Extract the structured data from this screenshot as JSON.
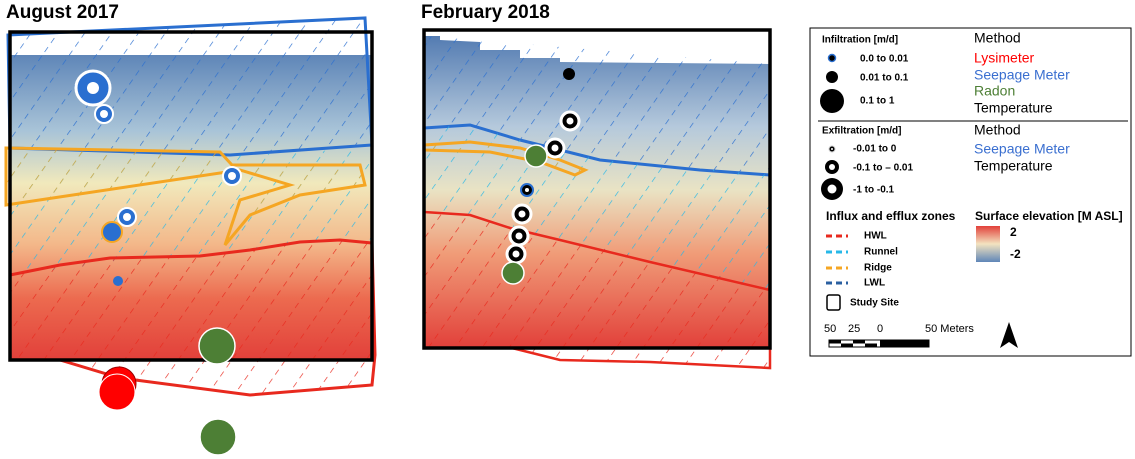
{
  "panels": [
    {
      "title": "August 2017"
    },
    {
      "title": "February 2018"
    }
  ],
  "legend": {
    "infiltration": {
      "title": "Infiltration [m/d]",
      "classes": [
        "0.0 to 0.01",
        "0.01 to 0.1",
        "0.1 to 1"
      ]
    },
    "infiltration_method": {
      "title": "Method",
      "methods": [
        "Lysimeter",
        "Seepage Meter",
        "Radon",
        "Temperature"
      ]
    },
    "exfiltration": {
      "title": "Exfiltration [m/d]",
      "classes": [
        "-0.01 to 0",
        "-0.1 to – 0.01",
        "-1 to -0.1"
      ]
    },
    "exfiltration_method": {
      "title": "Method",
      "methods": [
        "Seepage Meter",
        "Temperature"
      ]
    },
    "zones": {
      "title": "Influx and efflux zones",
      "items": [
        "HWL",
        "Runnel",
        "Ridge",
        "LWL"
      ]
    },
    "study_site": "Study Site",
    "elevation": {
      "title": "Surface elevation [M ASL]",
      "high": "2",
      "low": "-2"
    },
    "scale": {
      "ticks": [
        "50",
        "25",
        "0",
        "50 Meters"
      ]
    },
    "north": "N"
  }
}
